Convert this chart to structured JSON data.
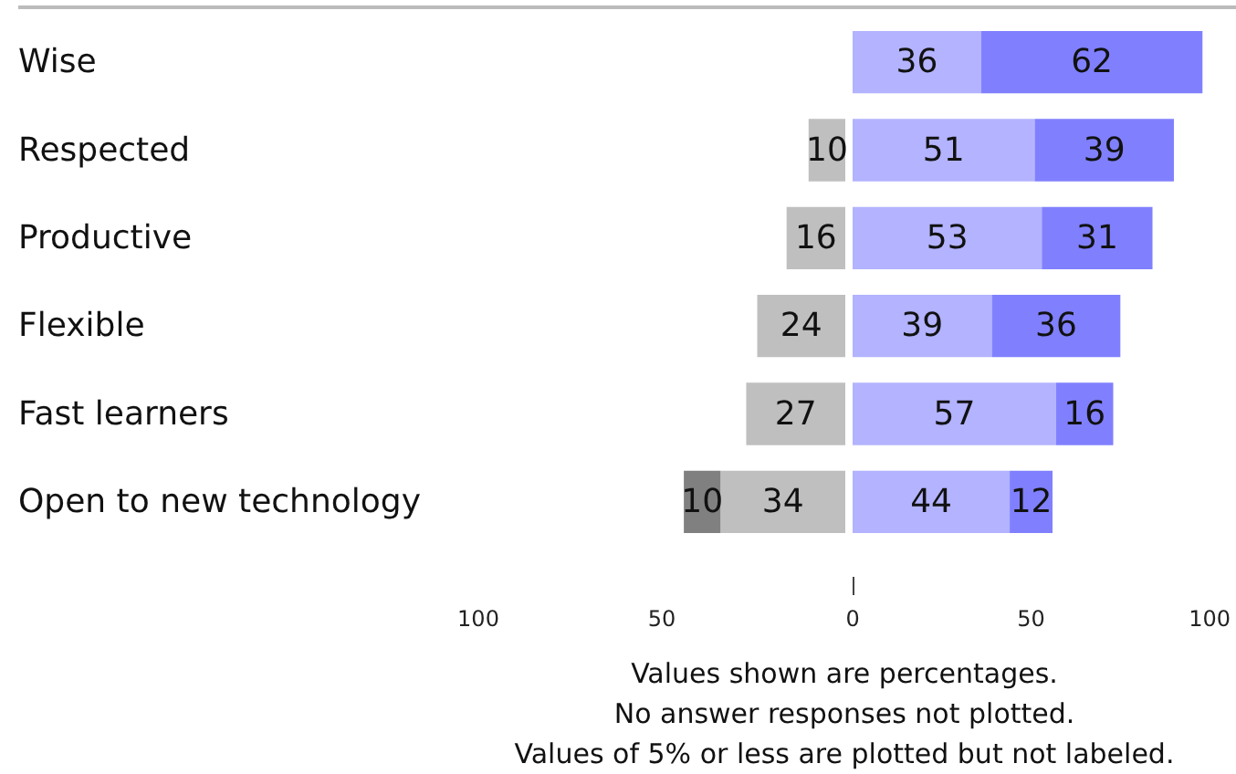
{
  "chart_data": [
    {
      "type": "bar",
      "orientation": "horizontal",
      "stacked": true,
      "data_labels": true,
      "categories": [
        "Wise",
        "Respected",
        "Productive",
        "Flexible",
        "Fast learners",
        "Open to new technology"
      ],
      "series": [
        {
          "color": "#bfbfbf",
          "values": [
            null,
            10,
            16,
            24,
            27,
            34
          ]
        },
        {
          "color": "#808080",
          "values": [
            null,
            null,
            null,
            null,
            null,
            10
          ]
        }
      ],
      "xlim": [
        100,
        0
      ],
      "xticks": [
        100,
        50
      ],
      "annotations": [
        "Values shown are percentages.",
        "No answer responses not plotted.",
        "Values of 5% or less are plotted but not labeled."
      ]
    },
    {
      "type": "bar",
      "orientation": "horizontal",
      "stacked": true,
      "data_labels": true,
      "categories": [
        null,
        null,
        null,
        null,
        null,
        null
      ],
      "series": [
        {
          "color": "#b3b3ff",
          "values": [
            36,
            51,
            53,
            39,
            57,
            44
          ]
        },
        {
          "color": "#8080ff",
          "values": [
            62,
            39,
            31,
            36,
            16,
            12
          ]
        }
      ],
      "xlim": [
        0,
        100
      ],
      "xticks": [
        0,
        50,
        100
      ]
    }
  ]
}
